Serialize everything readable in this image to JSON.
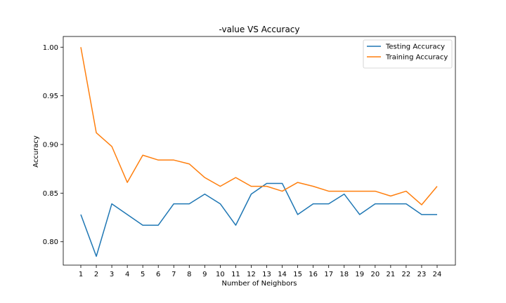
{
  "chart_data": {
    "type": "line",
    "title": "-value VS Accuracy",
    "xlabel": "Number of Neighbors",
    "ylabel": "Accuracy",
    "x": [
      1,
      2,
      3,
      4,
      5,
      6,
      7,
      8,
      9,
      10,
      11,
      12,
      13,
      14,
      15,
      16,
      17,
      18,
      19,
      20,
      21,
      22,
      23,
      24
    ],
    "xticks": [
      "1",
      "2",
      "3",
      "4",
      "5",
      "6",
      "7",
      "8",
      "9",
      "10",
      "11",
      "12",
      "13",
      "14",
      "15",
      "16",
      "17",
      "18",
      "19",
      "20",
      "21",
      "22",
      "23",
      "24"
    ],
    "ylim": [
      0.776,
      1.011
    ],
    "yticks": [
      0.8,
      0.85,
      0.9,
      0.95,
      1.0
    ],
    "ytick_labels": [
      "0.80",
      "0.85",
      "0.90",
      "0.95",
      "1.00"
    ],
    "grid": false,
    "legend_position": "top-right",
    "series": [
      {
        "name": "Testing Accuracy",
        "color": "#1f77b4",
        "values": [
          0.828,
          0.785,
          0.839,
          0.828,
          0.817,
          0.817,
          0.839,
          0.839,
          0.849,
          0.839,
          0.817,
          0.849,
          0.86,
          0.86,
          0.828,
          0.839,
          0.839,
          0.849,
          0.828,
          0.839,
          0.839,
          0.839,
          0.828,
          0.828
        ]
      },
      {
        "name": "Training Accuracy",
        "color": "#ff7f0e",
        "values": [
          1.0,
          0.912,
          0.898,
          0.861,
          0.889,
          0.884,
          0.884,
          0.88,
          0.866,
          0.857,
          0.866,
          0.857,
          0.857,
          0.852,
          0.861,
          0.857,
          0.852,
          0.852,
          0.852,
          0.852,
          0.847,
          0.852,
          0.838,
          0.857
        ]
      }
    ]
  }
}
